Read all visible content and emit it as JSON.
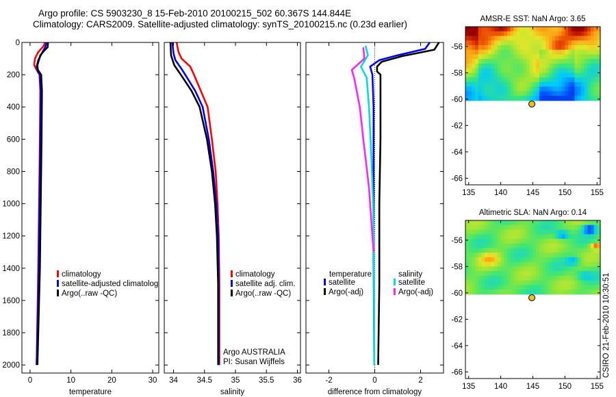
{
  "title_line1": "Argo profile: CS 5903230_8 15-Feb-2010 20100215_502 60.367S 144.844E",
  "title_line2": "Climatology: CARS2009. Satellite-adjusted climatology: synTS_20100215.nc (0.23d earlier)",
  "credit": "CSIRO 21-Feb-2010 10:30:51",
  "colors": {
    "clim": "#ff0000",
    "sat": "#0000ee",
    "argo": "#000000",
    "sal_sat": "#00dddd",
    "sal_argo": "#ff22ff"
  },
  "chart_data": [
    {
      "type": "line",
      "panel": "temperature",
      "xlabel": "temperature",
      "xlim": [
        -2,
        31.5
      ],
      "ylim": [
        2050,
        0
      ],
      "y_reversed": true,
      "xticks": [
        0,
        10,
        20,
        30
      ],
      "xtick_labels": [
        "0",
        "10",
        "20",
        "30"
      ],
      "yticks": [
        0,
        200,
        400,
        600,
        800,
        1000,
        1200,
        1400,
        1600,
        1800,
        2000
      ],
      "ytick_labels": [
        "0",
        "200",
        "400",
        "600",
        "800",
        "1000",
        "1200",
        "1400",
        "1600",
        "1800",
        "2000"
      ],
      "legend": {
        "position": "lower-middle",
        "entries": [
          "climatology",
          "satellite-adjusted climatology",
          "Argo(..raw -QC)"
        ]
      },
      "series": [
        {
          "name": "climatology",
          "color_key": "clim",
          "points": [
            [
              3.6,
              0
            ],
            [
              3.4,
              20
            ],
            [
              2.0,
              60
            ],
            [
              1.2,
              100
            ],
            [
              1.0,
              140
            ],
            [
              1.6,
              170
            ],
            [
              2.3,
              200
            ],
            [
              2.5,
              300
            ],
            [
              2.4,
              600
            ],
            [
              2.2,
              1000
            ],
            [
              2.0,
              1400
            ],
            [
              1.8,
              1700
            ],
            [
              1.6,
              2000
            ]
          ]
        },
        {
          "name": "satellite-adjusted climatology",
          "color_key": "sat",
          "points": [
            [
              4.0,
              0
            ],
            [
              3.8,
              25
            ],
            [
              2.8,
              70
            ],
            [
              2.0,
              110
            ],
            [
              1.6,
              150
            ],
            [
              1.9,
              180
            ],
            [
              2.4,
              200
            ],
            [
              2.6,
              300
            ],
            [
              2.5,
              600
            ],
            [
              2.3,
              1000
            ],
            [
              2.1,
              1400
            ],
            [
              1.9,
              1700
            ],
            [
              1.6,
              2000
            ]
          ]
        },
        {
          "name": "Argo(..raw -QC)",
          "color_key": "argo",
          "points": [
            [
              4.4,
              0
            ],
            [
              4.3,
              30
            ],
            [
              3.5,
              50
            ],
            [
              2.5,
              80
            ],
            [
              1.8,
              140
            ],
            [
              1.9,
              170
            ],
            [
              2.7,
              200
            ],
            [
              2.9,
              300
            ],
            [
              2.8,
              600
            ],
            [
              2.6,
              1000
            ],
            [
              2.4,
              1400
            ],
            [
              2.1,
              1700
            ],
            [
              1.8,
              2000
            ]
          ]
        }
      ]
    },
    {
      "type": "line",
      "panel": "salinity",
      "xlabel": "salinity",
      "xlim": [
        33.85,
        36.05
      ],
      "ylim": [
        2050,
        0
      ],
      "y_reversed": true,
      "xticks": [
        34,
        34.5,
        35,
        35.5,
        36
      ],
      "xtick_labels": [
        "34",
        "34.5",
        "35",
        "35.5",
        "36"
      ],
      "legend": {
        "position": "lower-right",
        "entries": [
          "climatology",
          "satellite adj. clim.",
          "Argo(..raw -QC)"
        ]
      },
      "annotations": [
        "Argo AUSTRALIA",
        "PI: Susan Wijffels"
      ],
      "series": [
        {
          "name": "climatology",
          "color_key": "clim",
          "points": [
            [
              34.05,
              0
            ],
            [
              34.08,
              60
            ],
            [
              34.13,
              100
            ],
            [
              34.27,
              150
            ],
            [
              34.33,
              200
            ],
            [
              34.44,
              300
            ],
            [
              34.55,
              400
            ],
            [
              34.62,
              600
            ],
            [
              34.68,
              800
            ],
            [
              34.71,
              1000
            ],
            [
              34.73,
              1200
            ],
            [
              34.74,
              1500
            ],
            [
              34.74,
              2000
            ]
          ]
        },
        {
          "name": "satellite adj. clim.",
          "color_key": "sat",
          "points": [
            [
              33.98,
              0
            ],
            [
              34.0,
              70
            ],
            [
              34.03,
              110
            ],
            [
              34.14,
              170
            ],
            [
              34.22,
              220
            ],
            [
              34.35,
              300
            ],
            [
              34.47,
              400
            ],
            [
              34.57,
              600
            ],
            [
              34.64,
              800
            ],
            [
              34.69,
              1000
            ],
            [
              34.72,
              1200
            ],
            [
              34.73,
              1500
            ],
            [
              34.73,
              2000
            ]
          ]
        },
        {
          "name": "Argo(..raw -QC)",
          "color_key": "argo",
          "points": [
            [
              33.95,
              0
            ],
            [
              33.96,
              80
            ],
            [
              34.01,
              140
            ],
            [
              34.1,
              190
            ],
            [
              34.17,
              230
            ],
            [
              34.29,
              300
            ],
            [
              34.42,
              400
            ],
            [
              34.54,
              600
            ],
            [
              34.62,
              800
            ],
            [
              34.67,
              1000
            ],
            [
              34.7,
              1200
            ],
            [
              34.72,
              1500
            ],
            [
              34.72,
              2000
            ]
          ]
        }
      ]
    },
    {
      "type": "line",
      "panel": "difference",
      "xlabel": "difference from climatology",
      "xlim": [
        -3,
        3
      ],
      "ylim": [
        2050,
        0
      ],
      "y_reversed": true,
      "xticks": [
        -2,
        0,
        2
      ],
      "xtick_labels": [
        "-2",
        "0",
        "2"
      ],
      "legend": {
        "position": "lower-middle",
        "col1_header": "temperature",
        "col1_entries": [
          "satellite",
          "Argo(-adj)"
        ],
        "col2_header": "salinity",
        "col2_entries": [
          "satellite",
          "Argo(-adj)"
        ]
      },
      "series": [
        {
          "name": "temperature satellite",
          "color_key": "sat",
          "points": [
            [
              2.4,
              0
            ],
            [
              2.2,
              40
            ],
            [
              1.0,
              80
            ],
            [
              0.2,
              110
            ],
            [
              -0.2,
              150
            ],
            [
              -0.1,
              200
            ],
            [
              -0.05,
              400
            ],
            [
              -0.05,
              800
            ],
            [
              -0.05,
              1300
            ],
            [
              -0.02,
              2000
            ]
          ]
        },
        {
          "name": "temperature Argo(-adj)",
          "color_key": "argo",
          "points": [
            [
              2.8,
              0
            ],
            [
              2.6,
              45
            ],
            [
              1.2,
              85
            ],
            [
              0.3,
              120
            ],
            [
              0.1,
              150
            ],
            [
              0.1,
              180
            ],
            [
              0.25,
              200
            ],
            [
              0.25,
              600
            ],
            [
              0.2,
              1000
            ],
            [
              0.2,
              1500
            ],
            [
              0.15,
              2000
            ]
          ]
        },
        {
          "name": "salinity satellite",
          "color_key": "sal_sat",
          "points": [
            [
              -0.4,
              20
            ],
            [
              -0.3,
              80
            ],
            [
              -0.6,
              150
            ],
            [
              -0.35,
              220
            ],
            [
              -0.25,
              400
            ],
            [
              -0.15,
              700
            ],
            [
              -0.07,
              1000
            ],
            [
              -0.04,
              1300
            ],
            [
              -0.03,
              1600
            ],
            [
              -0.02,
              2000
            ]
          ]
        },
        {
          "name": "salinity Argo(-adj)",
          "color_key": "sal_argo",
          "points": [
            [
              -0.5,
              30
            ],
            [
              -0.45,
              100
            ],
            [
              -1.0,
              170
            ],
            [
              -0.9,
              220
            ],
            [
              -0.65,
              400
            ],
            [
              -0.5,
              600
            ],
            [
              -0.25,
              900
            ],
            [
              -0.1,
              1200
            ],
            [
              -0.05,
              1300
            ]
          ]
        }
      ]
    },
    {
      "type": "heatmap",
      "panel": "sst-map",
      "title": "AMSR-E SST: NaN Argo: 3.65",
      "xlim": [
        134.5,
        155.5
      ],
      "ylim": [
        -66.5,
        -54.5
      ],
      "xticks": [
        135,
        140,
        145,
        150,
        155
      ],
      "yticks": [
        -56,
        -58,
        -60,
        -62,
        -64,
        -66
      ],
      "ytick_labels": [
        "-56",
        "-58",
        "-60",
        "-62",
        "-64",
        "-66"
      ],
      "data_extent": {
        "lon": [
          134.5,
          155.5
        ],
        "lat": [
          -60.1,
          -54.5
        ]
      },
      "argo_position": {
        "lon": 144.844,
        "lat": -60.367
      }
    },
    {
      "type": "heatmap",
      "panel": "sla-map",
      "title": "Altimetric SLA: NaN Argo: 0.14",
      "xlim": [
        134.5,
        155.5
      ],
      "ylim": [
        -66.5,
        -54.5
      ],
      "xticks": [
        135,
        140,
        145,
        150,
        155
      ],
      "yticks": [
        -56,
        -58,
        -60,
        -62,
        -64,
        -66
      ],
      "ytick_labels": [
        "-56",
        "-58",
        "-60",
        "-62",
        "-64",
        "-66"
      ],
      "data_extent": {
        "lon": [
          134.5,
          155.5
        ],
        "lat": [
          -60.1,
          -54.5
        ]
      },
      "argo_position": {
        "lon": 144.844,
        "lat": -60.367
      }
    }
  ]
}
